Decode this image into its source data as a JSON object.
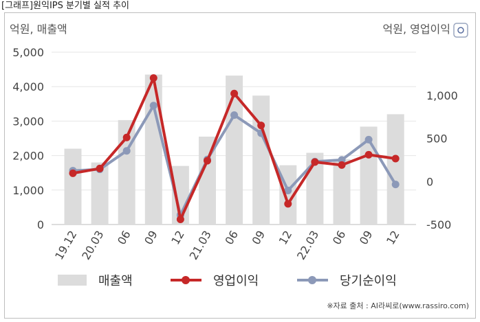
{
  "caption": "[그래프]원익IPS 분기별 실적 추이",
  "source": "※자료 출처 : AI라씨로(www.rassiro.com)",
  "chart_data": {
    "type": "bar+line",
    "left_axis_unit": "억원, 매출액",
    "right_axis_unit": "억원, 영업이익",
    "categories": [
      "19.12",
      "20.03",
      "06",
      "09",
      "12",
      "21.03",
      "06",
      "09",
      "12",
      "22.03",
      "06",
      "09",
      "12"
    ],
    "left_ticks": [
      "0",
      "1,000",
      "2,000",
      "3,000",
      "4,000",
      "5,000"
    ],
    "right_ticks": [
      "-500",
      "0",
      "500",
      "1,000"
    ],
    "ylim_left": [
      0,
      5000
    ],
    "ylim_right": [
      -500,
      1500
    ],
    "grid": true,
    "legend_position": "bottom",
    "series": [
      {
        "name": "매출액",
        "kind": "bar",
        "axis": "left",
        "color": "#dcdcdc",
        "values": [
          2200,
          1800,
          3030,
          4350,
          1700,
          2550,
          4320,
          3740,
          1720,
          2080,
          1900,
          2840,
          3200
        ]
      },
      {
        "name": "영업이익",
        "kind": "line",
        "axis": "right",
        "color": "#c62828",
        "values": [
          95,
          150,
          510,
          1200,
          -440,
          240,
          1020,
          650,
          -260,
          225,
          190,
          310,
          265
        ]
      },
      {
        "name": "당기순이익",
        "kind": "line",
        "axis": "right",
        "color": "#8c99b8",
        "values": [
          125,
          140,
          355,
          880,
          -390,
          255,
          770,
          560,
          -105,
          230,
          250,
          485,
          -35
        ]
      }
    ]
  }
}
